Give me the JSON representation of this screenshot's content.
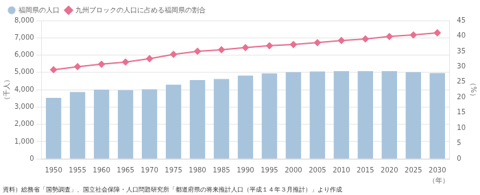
{
  "chart_data": {
    "type": "bar",
    "categories": [
      "1950",
      "1955",
      "1960",
      "1965",
      "1970",
      "1975",
      "1980",
      "1985",
      "1990",
      "1995",
      "2000",
      "2005",
      "2010",
      "2015",
      "2020",
      "2025",
      "2030"
    ],
    "series": [
      {
        "name": "福岡県の人口",
        "type": "bar",
        "color": "#a8c4dc",
        "values": [
          3530,
          3870,
          4005,
          3970,
          4027,
          4293,
          4554,
          4617,
          4811,
          4940,
          5016,
          5049,
          5072,
          5072,
          5071,
          5016,
          4966
        ]
      },
      {
        "name": "九州ブロックの人口に占める福岡県の割合",
        "type": "line",
        "axis": "y2",
        "color": "#e87090",
        "marker": "diamond",
        "values": [
          29.0,
          30.0,
          30.8,
          31.5,
          32.6,
          34.0,
          35.0,
          35.5,
          36.2,
          36.8,
          37.2,
          37.8,
          38.5,
          39.0,
          39.8,
          40.3,
          41.0
        ]
      }
    ],
    "xlabel": "（年）",
    "ylabel": "（千人）",
    "y2label": "（%）",
    "ylim": [
      0,
      8000
    ],
    "yticks": [
      0,
      {
        "value": 1000,
        "label": "1,000"
      },
      {
        "value": 2000,
        "label": "2,000"
      },
      {
        "value": 3000,
        "label": "3,000"
      },
      {
        "value": 4000,
        "label": "4,000"
      },
      {
        "value": 5000,
        "label": "5,000"
      },
      {
        "value": 6000,
        "label": "6,000"
      },
      {
        "value": 7000,
        "label": "7,000"
      },
      {
        "value": 8000,
        "label": "8,000"
      }
    ],
    "y2lim": [
      0,
      45
    ],
    "y2ticks": [
      0,
      5,
      10,
      15,
      20,
      25,
      30,
      35,
      40,
      45
    ],
    "grid": "y",
    "legend": "upper left",
    "annotations": [
      "資料）総務省「国勢調査」、国立社会保障・人口問題研究所「都道府県の将来推計人口（平成１４年３月推計）」より作成"
    ]
  }
}
